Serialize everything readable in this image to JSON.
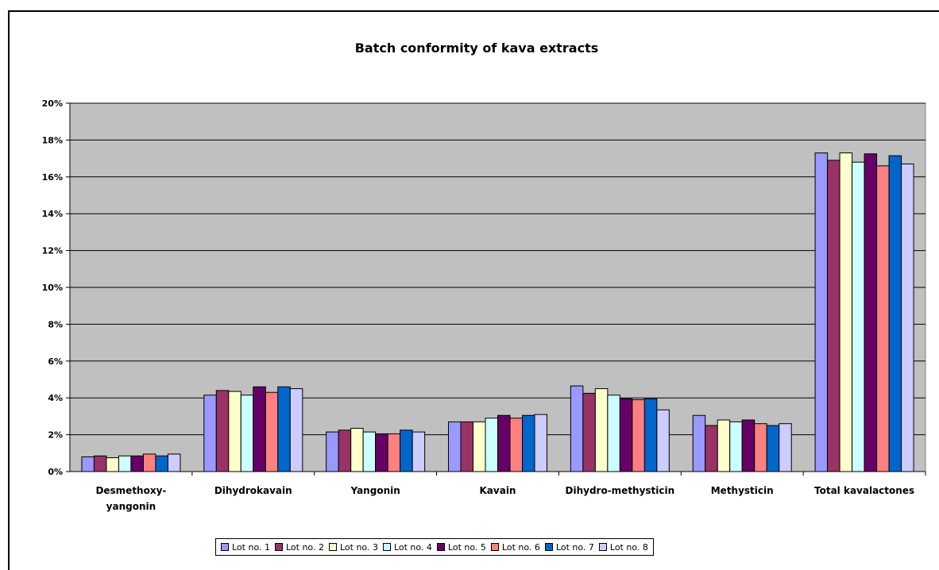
{
  "chart_data": {
    "type": "bar",
    "title": "Batch conformity of kava extracts",
    "xlabel": "",
    "ylabel": "",
    "ylim": [
      0,
      20
    ],
    "yticks": [
      "0%",
      "2%",
      "4%",
      "6%",
      "8%",
      "10%",
      "12%",
      "14%",
      "16%",
      "18%",
      "20%"
    ],
    "grid": true,
    "legend_position": "bottom",
    "categories": [
      [
        "Desmethoxy-",
        "yangonin"
      ],
      [
        "Dihydrokavain"
      ],
      [
        "Yangonin"
      ],
      [
        "Kavain"
      ],
      [
        "Dihydro-methysticin"
      ],
      [
        "Methysticin"
      ],
      [
        "Total kavalactones"
      ]
    ],
    "series": [
      {
        "name": "Lot no. 1",
        "color": "#9999ff",
        "values": [
          0.8,
          4.15,
          2.15,
          2.7,
          4.65,
          3.05,
          17.3
        ]
      },
      {
        "name": "Lot no. 2",
        "color": "#993366",
        "values": [
          0.85,
          4.4,
          2.25,
          2.7,
          4.25,
          2.5,
          16.9
        ]
      },
      {
        "name": "Lot no. 3",
        "color": "#ffffcc",
        "values": [
          0.75,
          4.35,
          2.35,
          2.7,
          4.5,
          2.8,
          17.3
        ]
      },
      {
        "name": "Lot no. 4",
        "color": "#ccffff",
        "values": [
          0.85,
          4.15,
          2.15,
          2.9,
          4.15,
          2.7,
          16.8
        ]
      },
      {
        "name": "Lot no. 5",
        "color": "#660066",
        "values": [
          0.85,
          4.6,
          2.05,
          3.05,
          3.95,
          2.8,
          17.25
        ]
      },
      {
        "name": "Lot no. 6",
        "color": "#ff8080",
        "values": [
          0.95,
          4.3,
          2.05,
          2.9,
          3.9,
          2.6,
          16.6
        ]
      },
      {
        "name": "Lot no. 7",
        "color": "#0066cc",
        "values": [
          0.85,
          4.6,
          2.25,
          3.05,
          3.95,
          2.5,
          17.15
        ]
      },
      {
        "name": "Lot no. 8",
        "color": "#ccccff",
        "values": [
          0.95,
          4.5,
          2.15,
          3.1,
          3.35,
          2.6,
          16.7
        ]
      }
    ],
    "plot_background": "#c0c0c0"
  }
}
